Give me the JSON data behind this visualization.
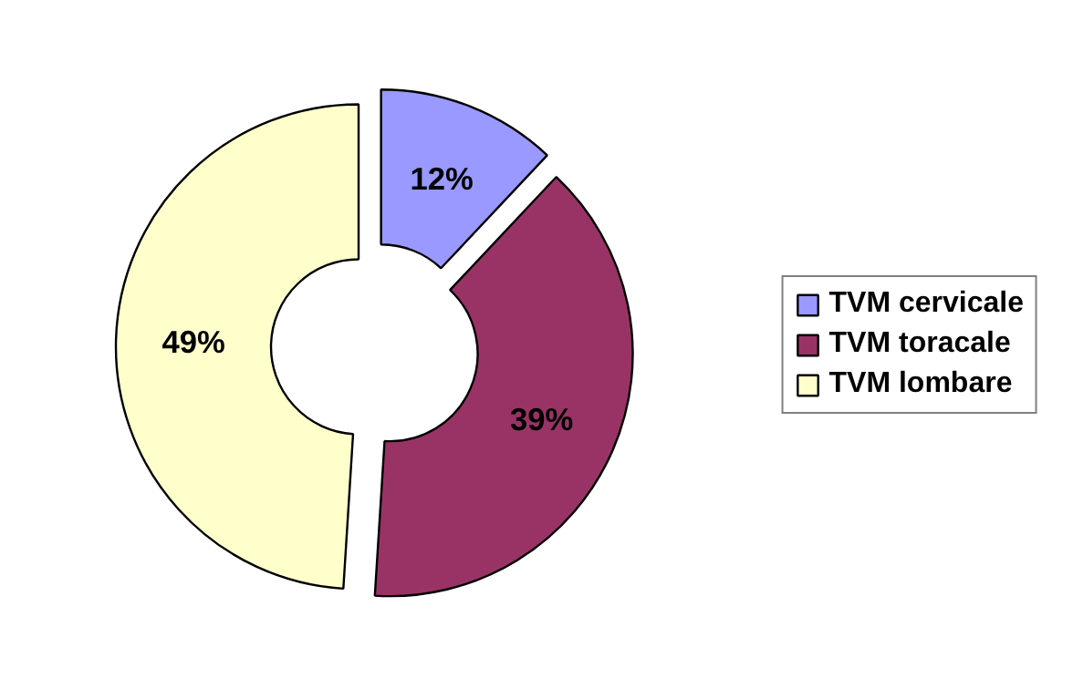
{
  "chart_data": {
    "type": "donut",
    "categories": [
      "TVM cervicale",
      "TVM toracale",
      "TVM lombare"
    ],
    "values": [
      12,
      39,
      49
    ],
    "colors": [
      "#9999ff",
      "#993366",
      "#ffffcc"
    ],
    "value_labels": [
      "12%",
      "39%",
      "49%"
    ],
    "legend": "right"
  }
}
